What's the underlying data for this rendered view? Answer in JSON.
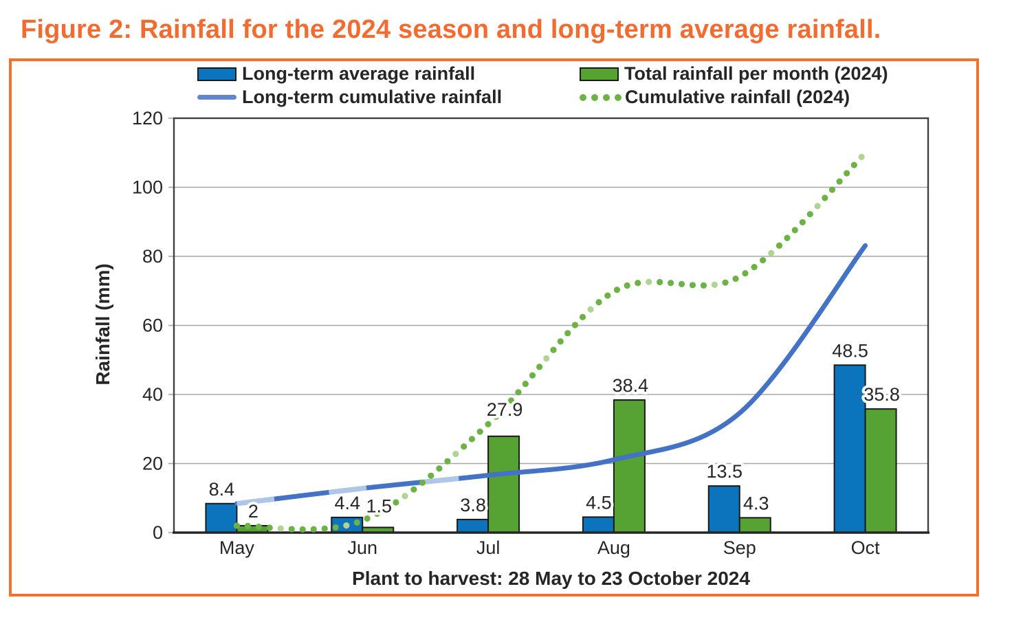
{
  "title": "Figure 2: Rainfall for the 2024 season and long-term average rainfall.",
  "legend": {
    "bar_longterm": "Long-term average rainfall",
    "bar_2024": "Total rainfall per month (2024)",
    "line_longterm": "Long-term cumulative rainfall",
    "line_2024": "Cumulative rainfall (2024)"
  },
  "colors": {
    "title_orange": "#F26C31",
    "frame_orange": "#F4702B",
    "bar_blue": "#0C73BD",
    "bar_green": "#56A233",
    "bar_border": "#1a1a1a",
    "line_blue": "#4472C4",
    "line_blue_light": "#AEC6E8",
    "legend_line_blue": "#6286CE",
    "dot_green": "#6CB245",
    "dot_green_light": "#AFD494",
    "grid": "#A6A6A6",
    "plot_border": "#404040",
    "axis_dark": "#262626",
    "text": "#262626"
  },
  "chart_data": {
    "type": "bar+line combo",
    "categories": [
      "May",
      "Jun",
      "Jul",
      "Aug",
      "Sep",
      "Oct"
    ],
    "series": [
      {
        "name": "Long-term average rainfall",
        "type": "bar",
        "values": [
          8.4,
          4.4,
          3.8,
          4.5,
          13.5,
          48.5
        ],
        "labels": [
          "8.4",
          "4.4",
          "3.8",
          "4.5",
          "13.5",
          "48.5"
        ]
      },
      {
        "name": "Total rainfall per month (2024)",
        "type": "bar",
        "values": [
          2,
          1.5,
          27.9,
          38.4,
          4.3,
          35.8
        ],
        "labels": [
          "2",
          "1.5",
          "27.9",
          "38.4",
          "4.3",
          "35.8"
        ]
      },
      {
        "name": "Long-term cumulative rainfall",
        "type": "line-smooth",
        "values": [
          8.4,
          12.8,
          16.6,
          21.1,
          34.6,
          83.1
        ]
      },
      {
        "name": "Cumulative rainfall (2024)",
        "type": "line-dotted-smooth",
        "values": [
          2,
          3.5,
          31.4,
          69.8,
          74.1,
          109.9
        ]
      }
    ],
    "ylabel": "Rainfall (mm)",
    "xlabel": "Plant to harvest: 28 May to 23 October 2024",
    "ylim": [
      0,
      120
    ],
    "yticks": [
      0,
      20,
      40,
      60,
      80,
      100,
      120
    ],
    "grid": "horizontal",
    "legend_position": "top"
  }
}
